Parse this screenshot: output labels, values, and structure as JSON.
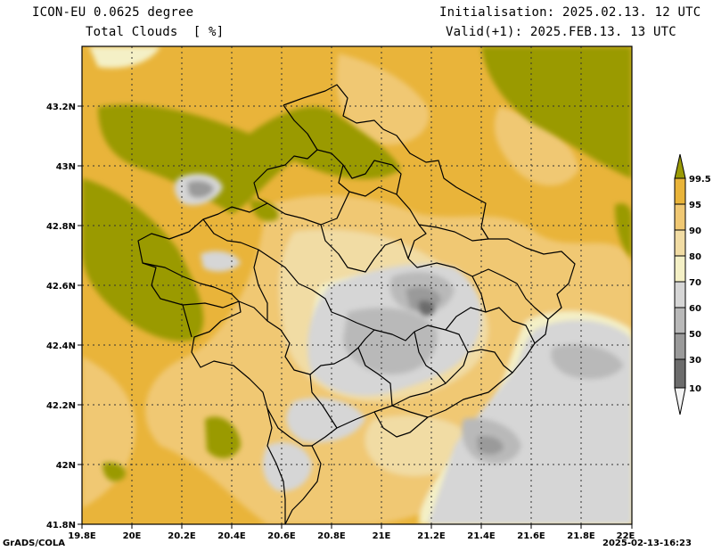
{
  "header": {
    "model": "ICON-EU 0.0625 degree",
    "field": "Total Clouds  [ %]",
    "init": "Initialisation: 2025.02.13. 12 UTC",
    "valid": "Valid(+1): 2025.FEB.13. 13 UTC"
  },
  "footer": {
    "left": "GrADS/COLA",
    "right": "2025-02-13-16:23"
  },
  "axes": {
    "x_ticks": [
      "19.8E",
      "20E",
      "20.2E",
      "20.4E",
      "20.6E",
      "20.8E",
      "21E",
      "21.2E",
      "21.4E",
      "21.6E",
      "21.8E",
      "22E"
    ],
    "y_ticks": [
      "43.2N",
      "43N",
      "42.8N",
      "42.6N",
      "42.4N",
      "42.2N",
      "42N",
      "41.8N"
    ]
  },
  "colorbar": {
    "labels": [
      "99.5",
      "95",
      "90",
      "80",
      "70",
      "60",
      "50",
      "30",
      "10"
    ],
    "colors": [
      "#9a9a05",
      "#e9b43a",
      "#f0c873",
      "#f1dca4",
      "#f4f0c6",
      "#d6d6d6",
      "#b9b9b9",
      "#9a9a9a",
      "#6c6c6c",
      "#f4f4f4"
    ]
  }
}
